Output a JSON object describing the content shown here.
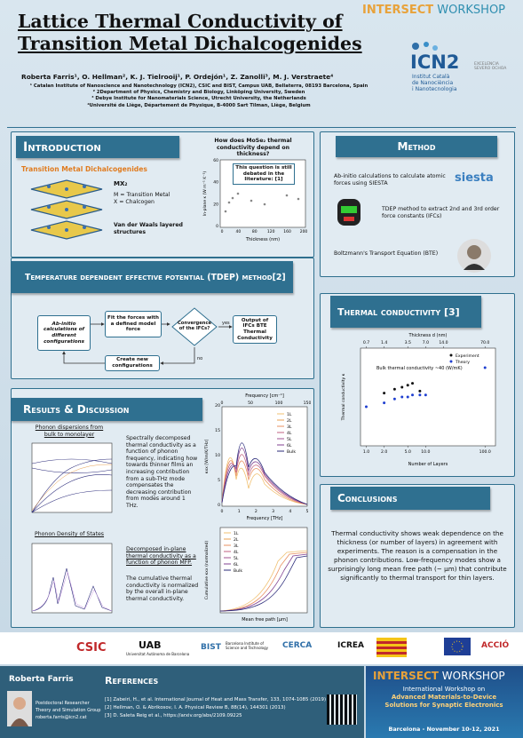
{
  "header": {
    "title_lines": [
      "Lattice Thermal Conductivity of",
      "Transition Metal Dichalcogenides"
    ],
    "authors": "Roberta Farris¹, O. Hellman², K. J. Tielrooij¹, P. Ordejón¹, Z. Zanolli³, M. J. Verstraete⁴",
    "affiliations": [
      "¹ Catalan Institute of Nanoscience and Nanotechnology (ICN2), CSIC and BIST, Campus UAB, Bellaterra, 08193 Barcelona, Spain",
      "² 2Department of Physics, Chemistry and Biology, Linköping University, Sweden",
      "³ Debye Institute for Nanomaterials Science, Utrecht University, the Netherlands",
      "⁴Université de Liège, Département de Physique, B-4000 Sart Tilman, Liège, Belgium"
    ],
    "workshop_logo": [
      "INTERSECT",
      "WORKSHOP"
    ],
    "icn2": {
      "name": "ICN2",
      "lines": [
        "Institut Català",
        "de Nanociència",
        "i Nanotecnologia"
      ],
      "excellence": "EXCELENCIA SEVERO OCHOA"
    }
  },
  "introduction": {
    "heading": "Introduction",
    "subtitle": "Transition Metal Dichalcogenides",
    "formula": "MX₂",
    "lines": [
      "M = Transition Metal",
      "X = Chalcogen"
    ],
    "vdw": "Van der Waals layered structures",
    "question": "How does MoSe₂ thermal conductivity depend on thickness?",
    "callout": "This question is still debated in the literature: [1]",
    "plot": {
      "ylabel": "In-plane κ (W m⁻¹ K⁻¹)",
      "xlabel": "Thickness (nm)",
      "xticks": [
        "0",
        "40",
        "80",
        "120",
        "160",
        "200"
      ],
      "yticks": [
        "0",
        "20",
        "40",
        "60"
      ]
    }
  },
  "method": {
    "heading": "Method",
    "items": [
      "Ab-initio calculations to calculate atomic forces using SIESTA",
      "TDEP method to extract 2nd and 3rd order force constants (IFCs)",
      "Boltzmann's Transport Equation (BTE)"
    ],
    "siesta": "siesta"
  },
  "tdep": {
    "heading": "Temperature dependent effective potential (TDEP) method[2]",
    "nodes": [
      "Ab-initio calculations of different configurations",
      "Fit the forces with a defined model force",
      "Convergence of the IFCs?",
      "Output of IFCs BTE Thermal Conductivity",
      "Create new configurations"
    ],
    "yes": "yes",
    "no": "no"
  },
  "thermal": {
    "heading": "Thermal conductivity [3]",
    "chart": {
      "type": "scatter",
      "top_label": "Thickness d (nm)",
      "xlabel": "Number of Layers",
      "ylabel": "Thermal conductivity κ",
      "annotation": "Bulk thermal conductivity ~40 (W/mK)",
      "series": [
        {
          "name": "Experiment",
          "color": "#111111",
          "x": [
            2,
            3,
            4,
            5,
            6,
            8
          ],
          "values": [
            27,
            29,
            30,
            31,
            32,
            28
          ]
        },
        {
          "name": "Theory",
          "color": "#1f3fd0",
          "x": [
            1,
            2,
            3,
            4,
            5,
            6,
            8,
            10,
            100
          ],
          "values": [
            20,
            22,
            24,
            25,
            25,
            26,
            26,
            26,
            40
          ]
        }
      ],
      "xlim": [
        0.8,
        150
      ],
      "ylim": [
        0,
        50
      ],
      "log_x": true,
      "xticks": [
        {
          "value": 1,
          "label": "1.0"
        },
        {
          "value": 2,
          "label": "2.0"
        },
        {
          "value": 5,
          "label": "5.0"
        },
        {
          "value": 10,
          "label": "10.0"
        },
        {
          "value": 100,
          "label": "100.0"
        }
      ],
      "top_ticks": [
        {
          "value": 1,
          "label": "0.7"
        },
        {
          "value": 2,
          "label": "1.4"
        },
        {
          "value": 5,
          "label": "3.5"
        },
        {
          "value": 10,
          "label": "7.0"
        },
        {
          "value": 20,
          "label": "14.0"
        },
        {
          "value": 100,
          "label": "70.0"
        }
      ]
    }
  },
  "results": {
    "heading": "Results & Discussion",
    "dispersion_title": "Phonon dispersions from bulk to monolayer",
    "dos_title": "Phonon Density of States",
    "text1": "Spectrally decomposed thermal conductivity as a function of phonon frequency, indicating how towards thinner films an increasing contribution from a sub-THz mode compensates the decreasing contribution from modes around 1 THz.",
    "text2": "Decomposed in-plane thermal conductivity as a function of phonon MFP.",
    "text3": "The cumulative thermal conductivity is normalized by the overall in-plane thermal conductivity.",
    "layers": [
      "1L",
      "2L",
      "3L",
      "4L",
      "5L",
      "6L",
      "Bulk"
    ],
    "spectral": {
      "top_label": "Frequency [cm⁻¹]",
      "top_ticks": [
        "0",
        "50",
        "100",
        "150"
      ],
      "ylabel": "κxx [W/m/K/THz]",
      "yticks": [
        "0",
        "5",
        "10",
        "15",
        "20"
      ],
      "xlabel": "Frequency [THz]",
      "xticks": [
        "0",
        "1",
        "2",
        "3",
        "4",
        "5"
      ]
    },
    "cumulative": {
      "xlabel": "Mean free path [μm]",
      "ylabel": "Cumulative κxx (normalized)"
    }
  },
  "conclusions": {
    "heading": "Conclusions",
    "text": "Thermal conductivity shows weak dependence on the thickness (or number of layers) in agreement with experiments. The reason is a compensation in the phonon contributions. Low-frequency modes show a surprisingly long mean free path (~ μm) that contribute significantly to thermal transport for thin layers."
  },
  "logos": [
    "CSIC",
    "UAB",
    "Universitat Autònoma de Barcelona",
    "BIST",
    "Barcelona Institute of Science and Technology",
    "CERCA",
    "ICREA",
    "ACCIÓ"
  ],
  "footer": {
    "name": "Roberta Farris",
    "affiliation": [
      "Postdoctoral Researcher",
      "Theory and Simulation Group",
      "roberta.farris@icn2.cat"
    ],
    "references_heading": "References",
    "references": [
      "[1]  Zabeiri, H., et al. International Journal of Heat and Mass Transfer, 133, 1074-1085 (2019)",
      "[2]  Hellman, O. & Abrikosov, I. A.  Physical Review B, 88(14), 144301 (2013)",
      "[3]  D. Saleta Reig et al., https://arxiv.org/abs/2109.09225"
    ],
    "intersect": [
      "INTERSECT",
      "WORKSHOP"
    ],
    "workshop_lines": [
      "International Workshop on",
      "Advanced Materials-to-Device",
      "Solutions for Synaptic Electronics"
    ],
    "date": "Barcelona - November 10-12, 2021"
  }
}
